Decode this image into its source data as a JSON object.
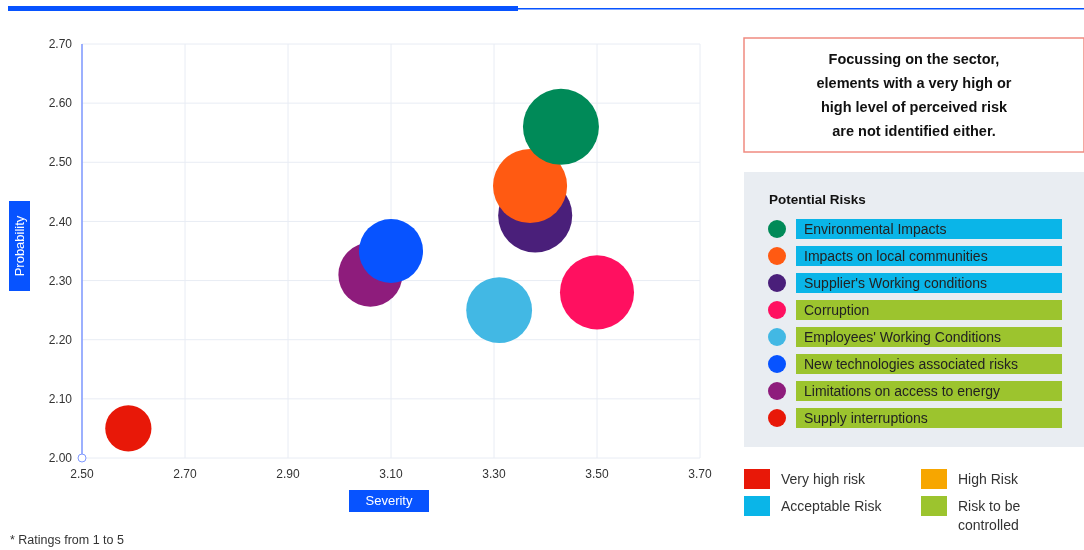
{
  "chart_data": {
    "type": "bubble",
    "xlabel": "Severity",
    "ylabel": "Probability",
    "legend_title": "Potential Risks",
    "legend": "right",
    "grid": true,
    "xlim": [
      2.5,
      3.7
    ],
    "xticks": [
      {
        "value": 2.5,
        "label": "2.50"
      },
      {
        "value": 2.7,
        "label": "2.70"
      },
      {
        "value": 2.9,
        "label": "2.90"
      },
      {
        "value": 3.1,
        "label": "3.10"
      },
      {
        "value": 3.3,
        "label": "3.30"
      },
      {
        "value": 3.5,
        "label": "3.50"
      },
      {
        "value": 3.7,
        "label": "3.70"
      }
    ],
    "ylim": [
      2.0,
      2.7
    ],
    "yticks": [
      {
        "value": 2.0,
        "label": "2.00"
      },
      {
        "value": 2.1,
        "label": "2.10"
      },
      {
        "value": 2.2,
        "label": "2.20"
      },
      {
        "value": 2.3,
        "label": "2.30"
      },
      {
        "value": 2.4,
        "label": "2.40"
      },
      {
        "value": 2.5,
        "label": "2.50"
      },
      {
        "value": 2.6,
        "label": "2.60"
      },
      {
        "value": 2.7,
        "label": "2.70"
      }
    ],
    "series": [
      {
        "name": "Environmental Impacts",
        "color": "#008a58",
        "x": [
          3.43
        ],
        "values": [
          2.56
        ],
        "sizes": [
          1
        ]
      },
      {
        "name": "Impacts on local communities",
        "color": "#ff5a12",
        "x": [
          3.37
        ],
        "values": [
          2.46
        ],
        "sizes": [
          0.95
        ]
      },
      {
        "name": "Supplier's Working conditions",
        "color": "#4a1f7a",
        "x": [
          3.38
        ],
        "values": [
          2.41
        ],
        "sizes": [
          0.95
        ]
      },
      {
        "name": "Corruption",
        "color": "#ff1060",
        "x": [
          3.5
        ],
        "values": [
          2.28
        ],
        "sizes": [
          0.95
        ]
      },
      {
        "name": "Employees' Working Conditions",
        "color": "#42b8e4",
        "x": [
          3.31
        ],
        "values": [
          2.25
        ],
        "sizes": [
          0.75
        ]
      },
      {
        "name": "New technologies associated risks",
        "color": "#0753ff",
        "x": [
          3.1
        ],
        "values": [
          2.35
        ],
        "sizes": [
          0.71
        ]
      },
      {
        "name": "Limitations on access to energy",
        "color": "#8e1c7c",
        "x": [
          3.06
        ],
        "values": [
          2.31
        ],
        "sizes": [
          0.71
        ]
      },
      {
        "name": "Supply interruptions",
        "color": "#e81808",
        "x": [
          2.59
        ],
        "values": [
          2.05
        ],
        "sizes": [
          0.37
        ]
      }
    ],
    "annotations": [
      "Focussing on the sector, elements with a very high or high level of perceived risk are not identified either.",
      "Very high risk",
      "High Risk",
      "Acceptable Risk",
      "Risk to be controlled",
      "* Ratings from 1 to 5"
    ]
  }
}
